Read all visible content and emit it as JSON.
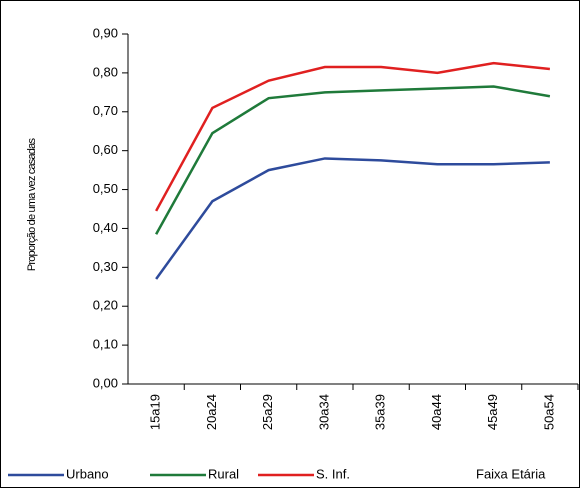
{
  "chart_data": {
    "type": "line",
    "y_label": "Proporção de uma vez casadas",
    "x_label": "Faixa Etária",
    "categories": [
      "15a19",
      "20a24",
      "25a29",
      "30a34",
      "35a39",
      "40a44",
      "45a49",
      "50a54"
    ],
    "series": [
      {
        "name": "Urbano",
        "color": "#2e4b9c",
        "values": [
          0.27,
          0.47,
          0.55,
          0.58,
          0.575,
          0.565,
          0.565,
          0.57
        ]
      },
      {
        "name": "Rural",
        "color": "#1f7a3a",
        "values": [
          0.385,
          0.645,
          0.735,
          0.75,
          0.755,
          0.76,
          0.765,
          0.74
        ]
      },
      {
        "name": "S. Inf.",
        "color": "#e02020",
        "values": [
          0.445,
          0.71,
          0.78,
          0.815,
          0.815,
          0.8,
          0.825,
          0.81
        ]
      }
    ],
    "ylim": [
      0,
      0.9
    ],
    "yticks": [
      {
        "value": 0,
        "label": "0,00"
      },
      {
        "value": 0.1,
        "label": "0,10"
      },
      {
        "value": 0.2,
        "label": "0,20"
      },
      {
        "value": 0.3,
        "label": "0,30"
      },
      {
        "value": 0.4,
        "label": "0,40"
      },
      {
        "value": 0.5,
        "label": "0,50"
      },
      {
        "value": 0.6,
        "label": "0,60"
      },
      {
        "value": 0.7,
        "label": "0,70"
      },
      {
        "value": 0.8,
        "label": "0,80"
      },
      {
        "value": 0.9,
        "label": "0,90"
      }
    ],
    "legend": "bottom"
  }
}
